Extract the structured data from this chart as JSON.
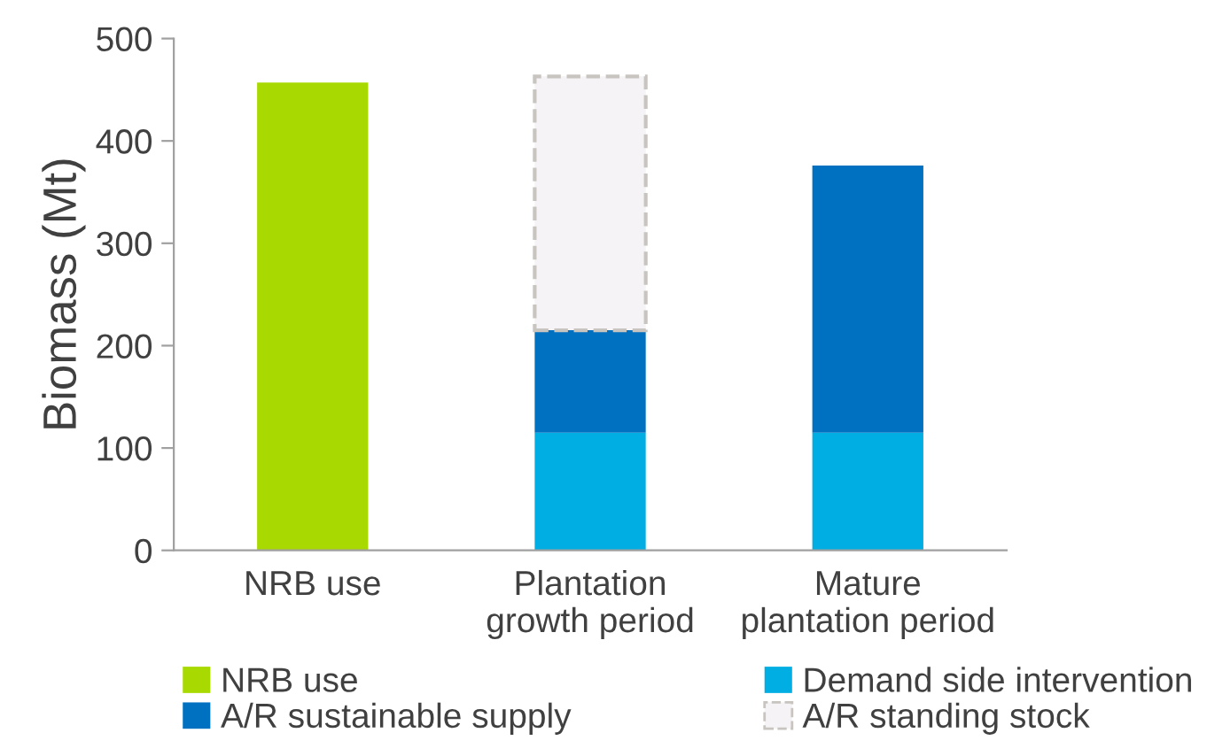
{
  "chart_data": {
    "type": "bar",
    "stacked": true,
    "ylabel": "Biomass (Mt)",
    "categories": [
      "NRB use",
      "Plantation\ngrowth period",
      "Mature\nplantation period"
    ],
    "series": [
      {
        "name": "NRB use",
        "color": "#a8d900",
        "values": [
          457,
          null,
          null
        ]
      },
      {
        "name": "Demand side intervention",
        "color": "#00aee3",
        "values": [
          null,
          115,
          115
        ]
      },
      {
        "name": "A/R sustainable supply",
        "color": "#0071c1",
        "values": [
          null,
          100,
          261
        ]
      },
      {
        "name": "A/R standing stock",
        "color": "#f5f3f5",
        "line_style": "dashed",
        "values": [
          null,
          248,
          null
        ]
      }
    ],
    "ylim": [
      0,
      500
    ],
    "yticks": [
      0,
      100,
      200,
      300,
      400,
      500
    ],
    "grid": false,
    "legend": "bottom"
  }
}
